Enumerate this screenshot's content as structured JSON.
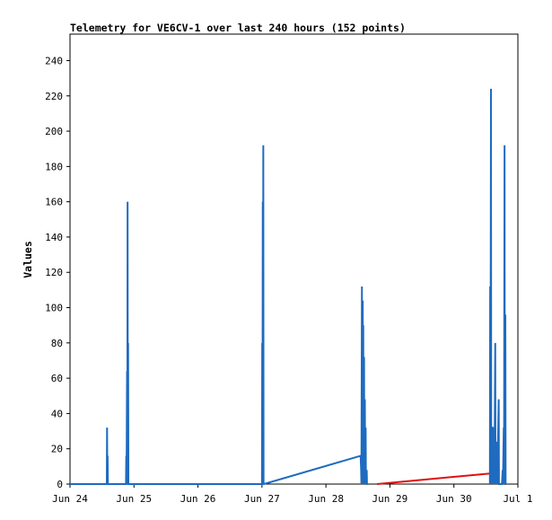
{
  "chart_data": {
    "type": "line",
    "title": "Telemetry for VE6CV-1 over last 240 hours (152 points)",
    "xlabel": "",
    "ylabel": "Values",
    "xlim_hours": [
      0,
      168
    ],
    "ylim": [
      0,
      255
    ],
    "x_tick_labels": [
      "Jun 24",
      "Jun 25",
      "Jun 26",
      "Jun 27",
      "Jun 28",
      "Jun 29",
      "Jun 30",
      "Jul 1"
    ],
    "y_ticks": [
      0,
      20,
      40,
      60,
      80,
      100,
      120,
      140,
      160,
      180,
      200,
      220,
      240
    ],
    "grid": false,
    "series": [
      {
        "color": "#1e6bc0",
        "points": [
          [
            0,
            0
          ],
          [
            13.8,
            0
          ],
          [
            13.9,
            32
          ],
          [
            14.0,
            0
          ],
          [
            14.1,
            16
          ],
          [
            14.2,
            0
          ],
          [
            14.5,
            0
          ],
          [
            21.0,
            0
          ],
          [
            21.1,
            16
          ],
          [
            21.2,
            0
          ],
          [
            21.4,
            64
          ],
          [
            21.5,
            0
          ],
          [
            21.6,
            160
          ],
          [
            21.7,
            0
          ],
          [
            21.8,
            80
          ],
          [
            21.9,
            0
          ],
          [
            22.0,
            0
          ],
          [
            72.0,
            0
          ],
          [
            72.1,
            80
          ],
          [
            72.2,
            0
          ],
          [
            72.3,
            160
          ],
          [
            72.4,
            0
          ],
          [
            72.5,
            192
          ],
          [
            72.6,
            0
          ],
          [
            72.7,
            0
          ],
          [
            109.0,
            16
          ],
          [
            109.2,
            8
          ],
          [
            109.3,
            0
          ],
          [
            109.5,
            112
          ],
          [
            109.6,
            0
          ],
          [
            109.8,
            104
          ],
          [
            109.9,
            0
          ],
          [
            110.0,
            90
          ],
          [
            110.1,
            0
          ],
          [
            110.3,
            72
          ],
          [
            110.4,
            0
          ],
          [
            110.6,
            48
          ],
          [
            110.7,
            0
          ],
          [
            110.9,
            32
          ],
          [
            111.0,
            0
          ],
          [
            111.3,
            8
          ],
          [
            111.4,
            0
          ],
          [
            111.6,
            0
          ]
        ]
      },
      {
        "color": "#e01010",
        "points": [
          [
            115.2,
            0
          ],
          [
            157.5,
            6
          ]
        ]
      },
      {
        "color": "#1e6bc0",
        "points": [
          [
            157.5,
            0
          ],
          [
            157.6,
            112
          ],
          [
            157.7,
            0
          ],
          [
            157.9,
            224
          ],
          [
            158.0,
            0
          ],
          [
            158.3,
            32
          ],
          [
            158.5,
            32
          ],
          [
            158.6,
            0
          ],
          [
            159.0,
            32
          ],
          [
            159.2,
            0
          ],
          [
            159.5,
            80
          ],
          [
            159.6,
            0
          ],
          [
            160.2,
            24
          ],
          [
            160.3,
            0
          ],
          [
            160.8,
            48
          ],
          [
            160.9,
            0
          ],
          [
            161.5,
            0
          ],
          [
            162.0,
            0
          ],
          [
            162.3,
            8
          ],
          [
            162.4,
            0
          ],
          [
            162.7,
            32
          ],
          [
            162.8,
            0
          ],
          [
            163.0,
            192
          ],
          [
            163.1,
            0
          ],
          [
            163.3,
            96
          ],
          [
            163.4,
            0
          ],
          [
            163.6,
            0
          ]
        ]
      }
    ]
  }
}
